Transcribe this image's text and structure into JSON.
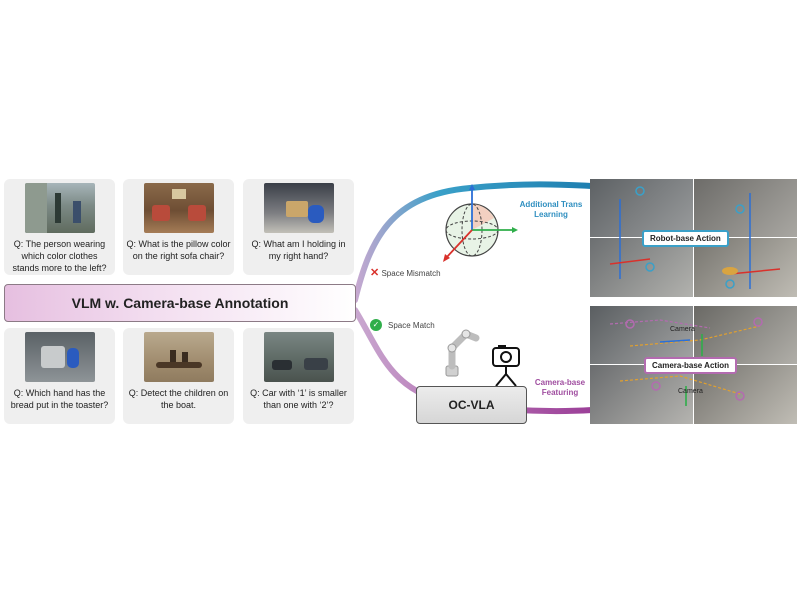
{
  "figure": {
    "left_main_label": "VLM w. Camera-base Annotation",
    "right_main_label": "OC-VLA",
    "questions": [
      {
        "text": "Q: The person wearing which color clothes stands more to the left?"
      },
      {
        "text": "Q: What is the pillow color on the right sofa chair?"
      },
      {
        "text": "Q: What am I holding in my right hand?"
      },
      {
        "text": "Q: Which hand has the bread put in the toaster?"
      },
      {
        "text": "Q: Detect the children on the boat."
      },
      {
        "text": "Q: Car with ‘1’ is smaller than one with ‘2’?"
      }
    ],
    "space_mismatch": "Space Mismatch",
    "space_match": "Space Match",
    "additional_trans": "Additional Trans Learning",
    "camera_base_featuring": "Camera-base Featuring",
    "robot_base_action": "Robot-base Action",
    "camera_base_action": "Camera-base Action",
    "camera_tag": "Camera"
  },
  "colors": {
    "top_arc": "#3aa0c8",
    "bottom_arc": "#b36bb0",
    "mismatch_x": "#d9312b",
    "match_check": "#2fae4a",
    "robot_label_border": "#3aa0c8",
    "camera_label_border": "#b36bb0"
  }
}
